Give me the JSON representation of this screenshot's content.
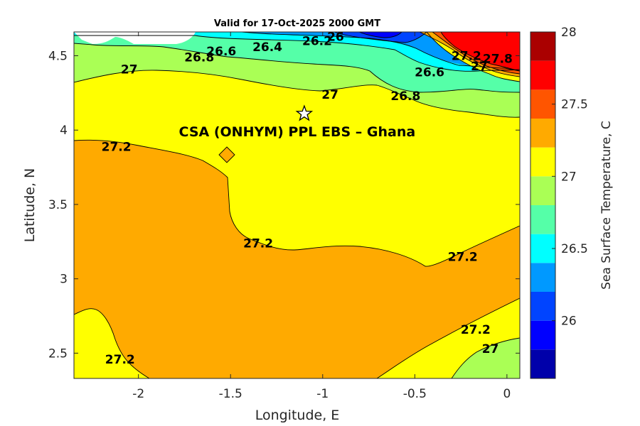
{
  "chart_data": {
    "type": "contour",
    "title": "Valid for 17-Oct-2025 2000 GMT",
    "xlabel": "Longitude, E",
    "ylabel": "Latitude, N",
    "xlim": [
      -2.35,
      0.07
    ],
    "ylim": [
      2.33,
      4.66
    ],
    "xticks": [
      "-2",
      "-1.5",
      "-1",
      "-0.5",
      "0"
    ],
    "xtick_values": [
      -2,
      -1.5,
      -1,
      -0.5,
      0
    ],
    "yticks": [
      "2.5",
      "3",
      "3.5",
      "4",
      "4.5"
    ],
    "ytick_values": [
      2.5,
      3,
      3.5,
      4,
      4.5
    ],
    "colorbar": {
      "label": "Sea Surface Temperature, C",
      "range": [
        25.6,
        28.0
      ],
      "ticks": [
        "26",
        "26.5",
        "27",
        "27.5",
        "28"
      ],
      "tick_values": [
        26,
        26.5,
        27,
        27.5,
        28
      ],
      "levels": [
        25.6,
        25.8,
        26.0,
        26.2,
        26.4,
        26.6,
        26.8,
        27.0,
        27.2,
        27.4,
        27.6,
        27.8,
        28.0
      ],
      "colors": [
        "#0000aa",
        "#0000ff",
        "#0044ff",
        "#0099ff",
        "#00ffff",
        "#55ffa8",
        "#aaff55",
        "#ffff00",
        "#ffaa00",
        "#ff5500",
        "#ff0000",
        "#aa0000"
      ]
    },
    "contour_labels": [
      {
        "text": "26",
        "lon": -0.93,
        "lat": 4.63
      },
      {
        "text": "26.2",
        "lon": -1.03,
        "lat": 4.6
      },
      {
        "text": "26.4",
        "lon": -1.3,
        "lat": 4.56
      },
      {
        "text": "26.6",
        "lon": -1.55,
        "lat": 4.53
      },
      {
        "text": "26.8",
        "lon": -1.67,
        "lat": 4.49
      },
      {
        "text": "27",
        "lon": -2.05,
        "lat": 4.41
      },
      {
        "text": "27",
        "lon": -0.96,
        "lat": 4.24
      },
      {
        "text": "26.8",
        "lon": -0.55,
        "lat": 4.23
      },
      {
        "text": "26.6",
        "lon": -0.42,
        "lat": 4.39
      },
      {
        "text": "27.2",
        "lon": -0.22,
        "lat": 4.5
      },
      {
        "text": "27",
        "lon": -0.15,
        "lat": 4.43
      },
      {
        "text": "27.8",
        "lon": -0.05,
        "lat": 4.48
      },
      {
        "text": "27.2",
        "lon": -2.12,
        "lat": 3.89
      },
      {
        "text": "27.2",
        "lon": -1.35,
        "lat": 3.24
      },
      {
        "text": "27.2",
        "lon": -0.24,
        "lat": 3.15
      },
      {
        "text": "27.2",
        "lon": -0.17,
        "lat": 2.66
      },
      {
        "text": "27",
        "lon": -0.09,
        "lat": 2.53
      },
      {
        "text": "27.2",
        "lon": -2.1,
        "lat": 2.46
      }
    ],
    "annotation": {
      "text": "CSA (ONHYM) PPL EBS  – Ghana",
      "marker": "star",
      "lon": -1.1,
      "lat": 4.11
    }
  }
}
